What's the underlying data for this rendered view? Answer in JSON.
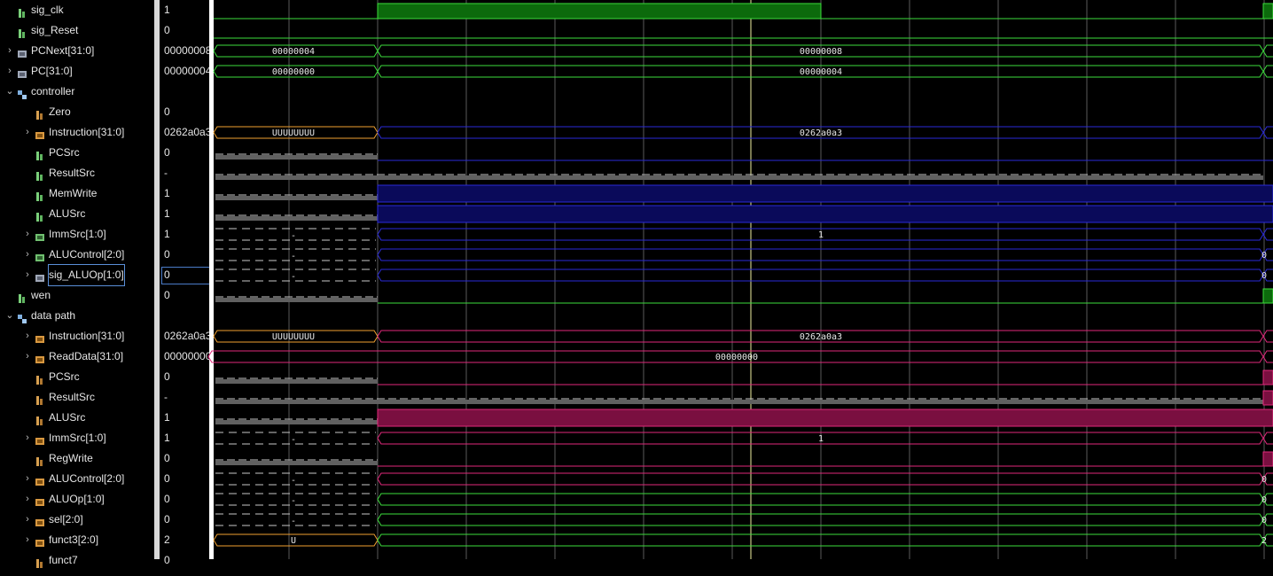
{
  "signals": [
    {
      "name": "sig_clk",
      "value": "1",
      "indent": 0,
      "expand": false,
      "icon": "bit-green-icon",
      "kind": "clk"
    },
    {
      "name": "sig_Reset",
      "value": "0",
      "indent": 0,
      "expand": false,
      "icon": "bit-green-icon",
      "kind": "low",
      "color": "green"
    },
    {
      "name": "PCNext[31:0]",
      "value": "00000008",
      "indent": 0,
      "expand": true,
      "icon": "bus-grey-icon",
      "kind": "bus",
      "color": "green",
      "seg1": "00000004",
      "seg2": "00000008"
    },
    {
      "name": "PC[31:0]",
      "value": "00000004",
      "indent": 0,
      "expand": true,
      "icon": "bus-grey-icon",
      "kind": "bus",
      "color": "green",
      "seg1": "00000000",
      "seg2": "00000004"
    },
    {
      "name": "controller",
      "value": "",
      "indent": 0,
      "expand": "open",
      "icon": "group-icon",
      "kind": "none"
    },
    {
      "name": "Zero",
      "value": "0",
      "indent": 1,
      "expand": false,
      "icon": "bit-orange-icon",
      "kind": "none"
    },
    {
      "name": "Instruction[31:0]",
      "value": "0262a0a3",
      "indent": 1,
      "expand": true,
      "icon": "bus-orange-icon",
      "kind": "bus",
      "color": "blue",
      "seg1": "UUUUUUUU",
      "seg2": "0262a0a3",
      "seg1color": "orange"
    },
    {
      "name": "PCSrc",
      "value": "0",
      "indent": 1,
      "expand": false,
      "icon": "bit-green-icon",
      "kind": "xblue0"
    },
    {
      "name": "ResultSrc",
      "value": "-",
      "indent": 1,
      "expand": false,
      "icon": "bit-green-icon",
      "kind": "xblue-x"
    },
    {
      "name": "MemWrite",
      "value": "1",
      "indent": 1,
      "expand": false,
      "icon": "bit-green-icon",
      "kind": "xblue1"
    },
    {
      "name": "ALUSrc",
      "value": "1",
      "indent": 1,
      "expand": false,
      "icon": "bit-green-icon",
      "kind": "xblue1"
    },
    {
      "name": "ImmSrc[1:0]",
      "value": "1",
      "indent": 1,
      "expand": true,
      "icon": "bus-green-icon",
      "kind": "xbus",
      "color": "blue",
      "seg2": "1"
    },
    {
      "name": "ALUControl[2:0]",
      "value": "0",
      "indent": 1,
      "expand": true,
      "icon": "bus-green-icon",
      "kind": "xbus",
      "color": "blue",
      "seg2": "",
      "end": "0"
    },
    {
      "name": "sig_ALUOp[1:0]",
      "value": "0",
      "indent": 1,
      "expand": true,
      "icon": "bus-grey-icon",
      "kind": "xbus",
      "color": "blue",
      "seg2": "",
      "end": "0",
      "selected": true
    },
    {
      "name": "wen",
      "value": "0",
      "indent": 0,
      "expand": false,
      "icon": "bit-green-icon",
      "kind": "xlow",
      "color": "green"
    },
    {
      "name": "data path",
      "value": "",
      "indent": 0,
      "expand": "open",
      "icon": "group-icon",
      "kind": "none"
    },
    {
      "name": "Instruction[31:0]",
      "value": "0262a0a3",
      "indent": 1,
      "expand": true,
      "icon": "bus-orange-icon",
      "kind": "bus",
      "color": "pink",
      "seg1": "UUUUUUUU",
      "seg2": "0262a0a3",
      "seg1color": "orange"
    },
    {
      "name": "ReadData[31:0]",
      "value": "00000000",
      "indent": 1,
      "expand": true,
      "icon": "bus-orange-icon",
      "kind": "busfull",
      "color": "pink",
      "seg2": "00000000"
    },
    {
      "name": "PCSrc",
      "value": "0",
      "indent": 1,
      "expand": false,
      "icon": "bit-orange-icon",
      "kind": "xpink0"
    },
    {
      "name": "ResultSrc",
      "value": "-",
      "indent": 1,
      "expand": false,
      "icon": "bit-orange-icon",
      "kind": "xpink-x"
    },
    {
      "name": "ALUSrc",
      "value": "1",
      "indent": 1,
      "expand": false,
      "icon": "bit-orange-icon",
      "kind": "xpink1"
    },
    {
      "name": "ImmSrc[1:0]",
      "value": "1",
      "indent": 1,
      "expand": true,
      "icon": "bus-orange-icon",
      "kind": "xbus",
      "color": "pink",
      "seg2": "1"
    },
    {
      "name": "RegWrite",
      "value": "0",
      "indent": 1,
      "expand": false,
      "icon": "bit-orange-icon",
      "kind": "xpink0"
    },
    {
      "name": "ALUControl[2:0]",
      "value": "0",
      "indent": 1,
      "expand": true,
      "icon": "bus-orange-icon",
      "kind": "xbus",
      "color": "pink",
      "seg2": "",
      "end": "0"
    },
    {
      "name": "ALUOp[1:0]",
      "value": "0",
      "indent": 1,
      "expand": true,
      "icon": "bus-orange-icon",
      "kind": "xbus",
      "color": "green",
      "seg2": "",
      "end": "0"
    },
    {
      "name": "sel[2:0]",
      "value": "0",
      "indent": 1,
      "expand": true,
      "icon": "bus-orange-icon",
      "kind": "xbus",
      "color": "green",
      "seg2": "",
      "end": "0"
    },
    {
      "name": "funct3[2:0]",
      "value": "2",
      "indent": 1,
      "expand": true,
      "icon": "bus-orange-icon",
      "kind": "xbus",
      "color": "green",
      "seg1": "U",
      "seg2": "",
      "end": "2",
      "seg1color": "orange"
    },
    {
      "name": "funct7",
      "value": "0",
      "indent": 1,
      "expand": false,
      "icon": "bit-orange-icon",
      "kind": "none"
    }
  ],
  "colors": {
    "green": "#3cdc3c",
    "blue": "#2a2ad8",
    "pink": "#e0287a",
    "orange": "#f0a030",
    "grid": "#d8d8d8",
    "cursor": "#f0f0a0"
  }
}
